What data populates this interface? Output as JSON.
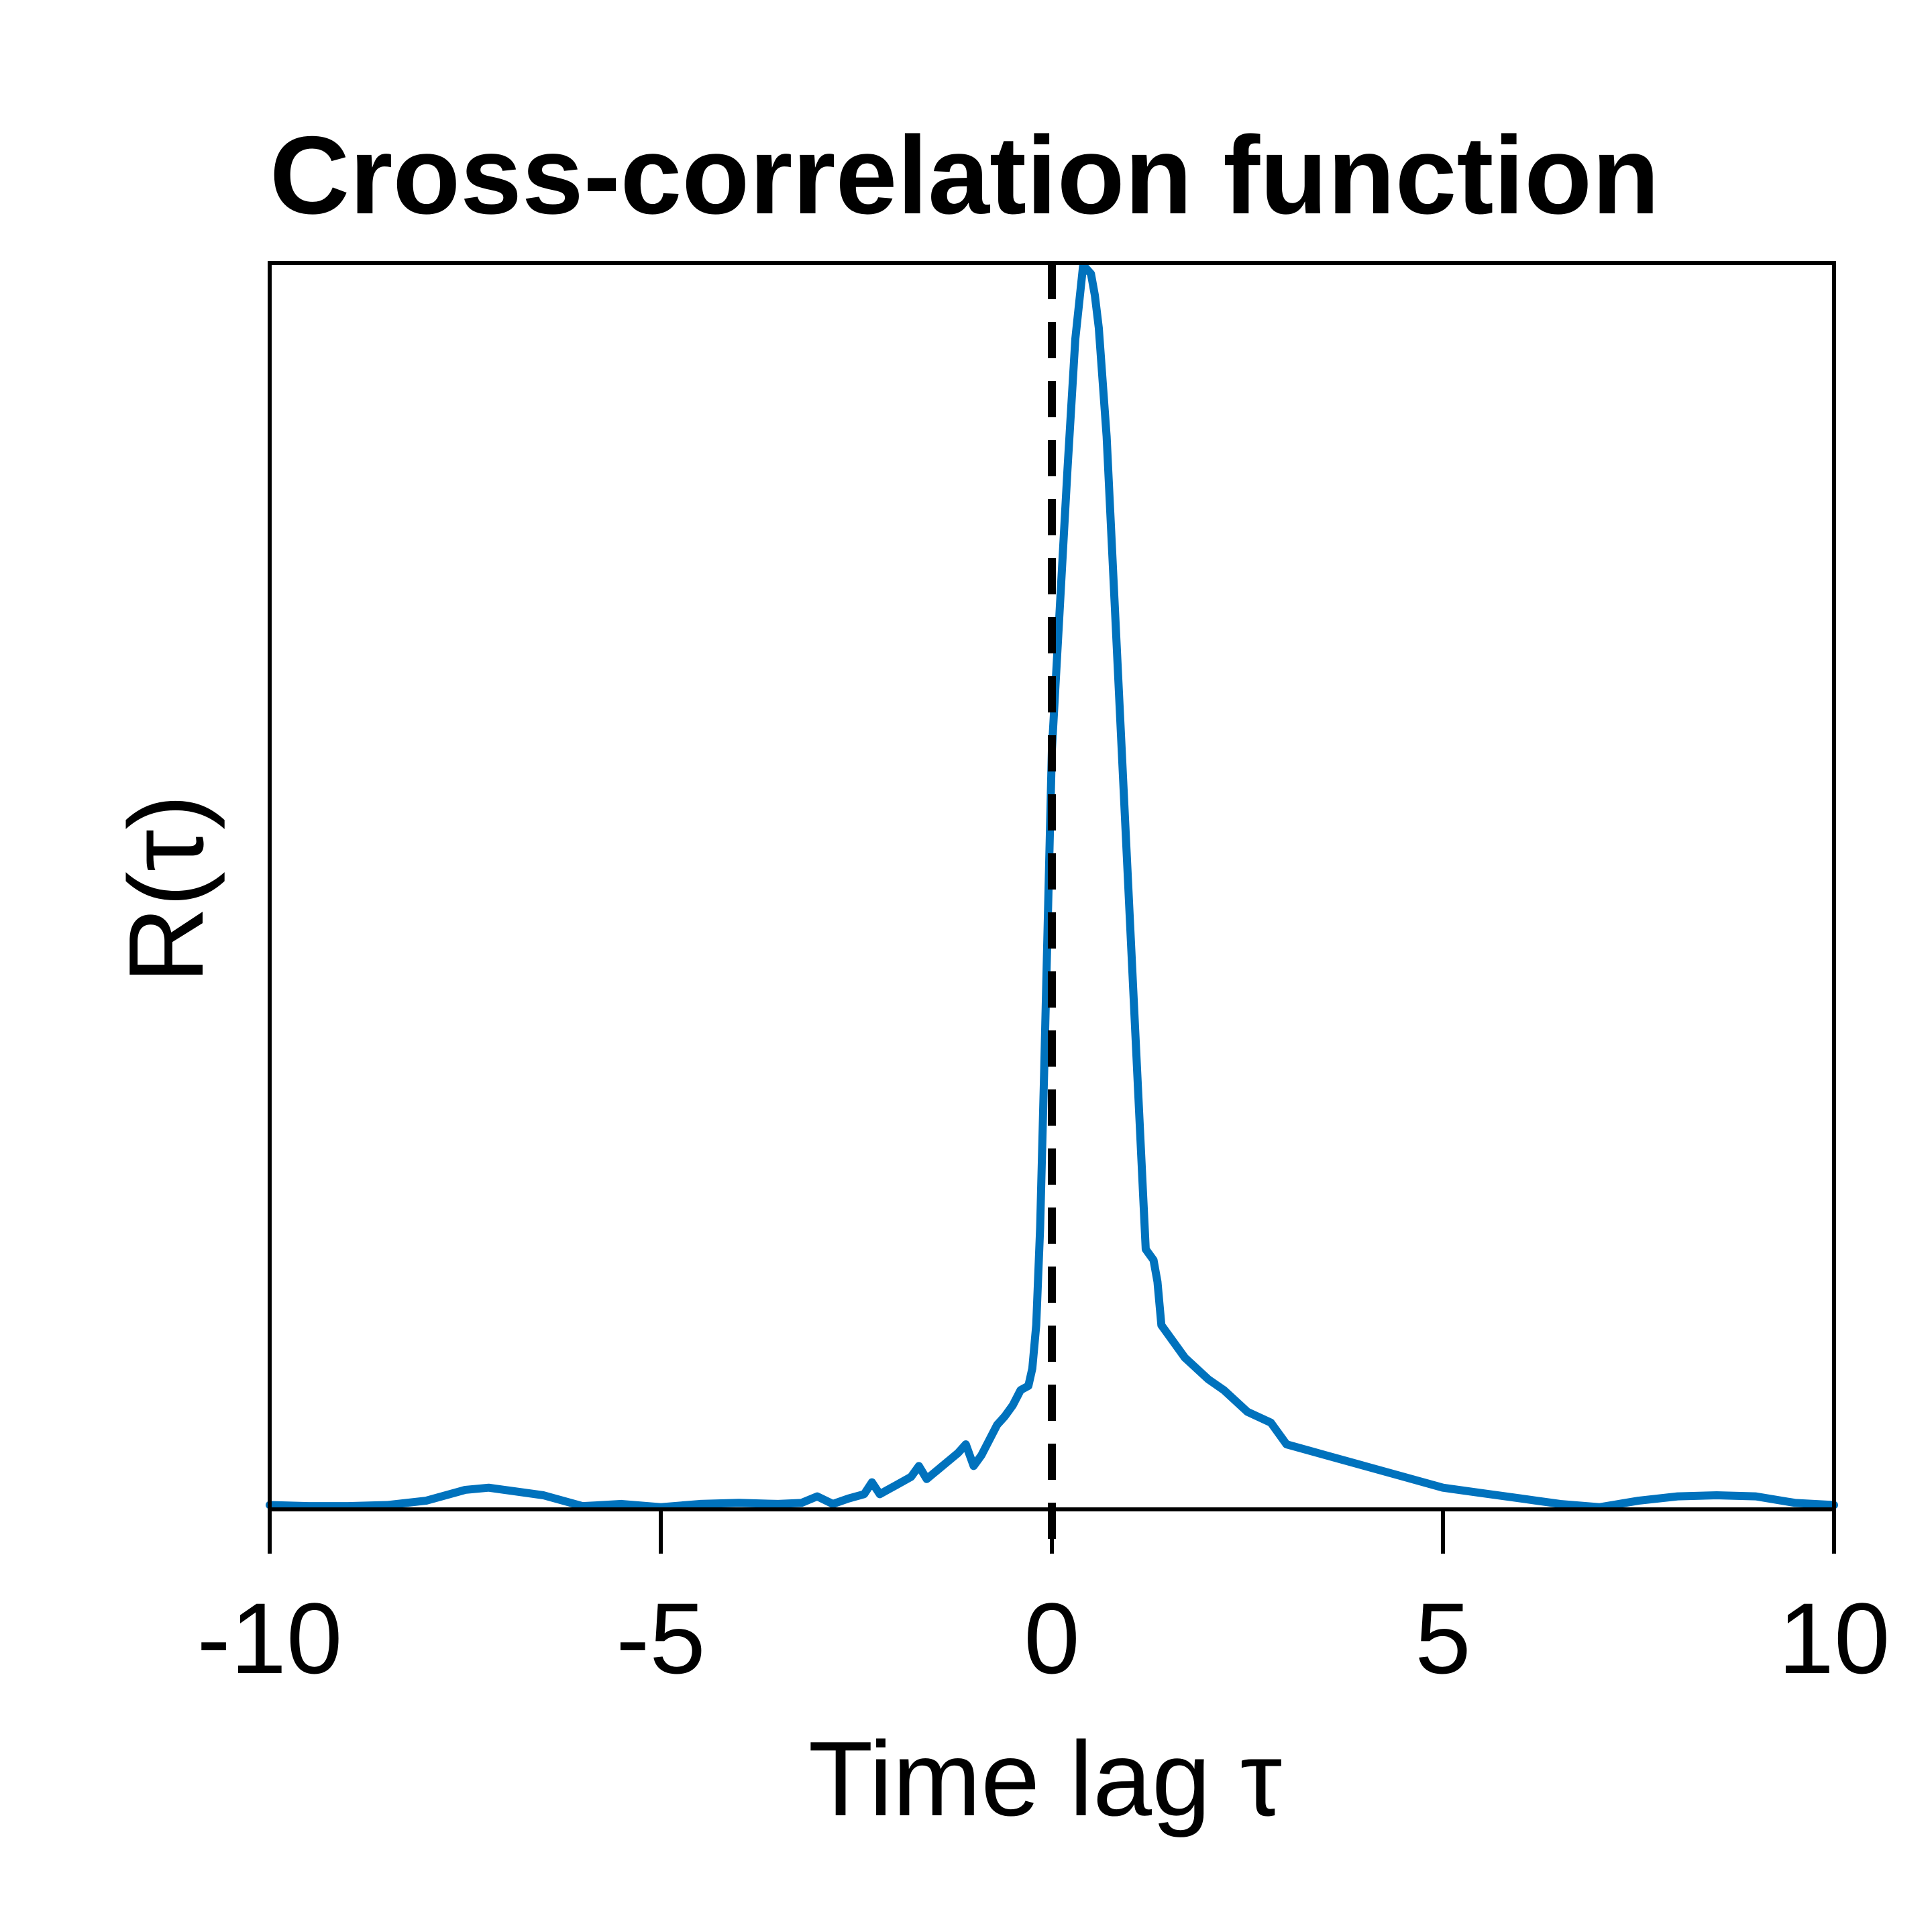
{
  "chart_data": {
    "type": "line",
    "title": "Cross-correlation function",
    "xlabel": "Time lag τ",
    "ylabel": "R(τ)",
    "xlim": [
      -10,
      10
    ],
    "ylim": [
      0,
      1.15
    ],
    "xticks": [
      -10,
      -5,
      0,
      5,
      10
    ],
    "xtick_labels": [
      "-10",
      "-5",
      "0",
      "5",
      "10"
    ],
    "show_yticks": false,
    "grid": false,
    "vline": {
      "x": 0,
      "style": "dashed",
      "color": "#000000"
    },
    "series": [
      {
        "color": "#0072BD",
        "x": [
          -10,
          -9.5,
          -9,
          -8.5,
          -8,
          -7.5,
          -7.2,
          -7,
          -6.5,
          -6,
          -5.5,
          -5,
          -4.5,
          -4,
          -3.5,
          -3.2,
          -3,
          -2.8,
          -2.6,
          -2.4,
          -2.3,
          -2.2,
          -2.1,
          -2.0,
          -1.9,
          -1.8,
          -1.7,
          -1.6,
          -1.5,
          -1.4,
          -1.3,
          -1.2,
          -1.1,
          -1.0,
          -0.9,
          -0.8,
          -0.7,
          -0.6,
          -0.5,
          -0.4,
          -0.3,
          -0.25,
          -0.2,
          -0.15,
          -0.1,
          -0.05,
          0,
          0.1,
          0.2,
          0.3,
          0.4,
          0.5,
          0.55,
          0.6,
          0.65,
          0.7,
          0.8,
          0.9,
          1.0,
          1.1,
          1.2,
          1.3,
          1.35,
          1.4,
          1.5,
          1.7,
          2.0,
          2.2,
          2.5,
          2.8,
          3.0,
          3.5,
          4.0,
          4.5,
          5.0,
          5.5,
          6.0,
          6.5,
          7.0,
          7.5,
          8.0,
          8.5,
          9.0,
          9.5,
          10
        ],
        "y": [
          0.004,
          0.003,
          0.003,
          0.004,
          0.008,
          0.018,
          0.02,
          0.018,
          0.013,
          0.003,
          0.005,
          0.002,
          0.005,
          0.006,
          0.005,
          0.006,
          0.012,
          0.005,
          0.01,
          0.014,
          0.025,
          0.014,
          0.018,
          0.022,
          0.026,
          0.03,
          0.04,
          0.028,
          0.034,
          0.04,
          0.046,
          0.052,
          0.06,
          0.04,
          0.05,
          0.064,
          0.078,
          0.086,
          0.096,
          0.11,
          0.114,
          0.13,
          0.17,
          0.26,
          0.4,
          0.55,
          0.7,
          0.83,
          0.96,
          1.08,
          1.148,
          1.14,
          1.12,
          1.09,
          1.04,
          0.99,
          0.84,
          0.69,
          0.54,
          0.39,
          0.24,
          0.23,
          0.21,
          0.17,
          0.16,
          0.14,
          0.12,
          0.11,
          0.09,
          0.08,
          0.06,
          0.05,
          0.04,
          0.03,
          0.02,
          0.015,
          0.01,
          0.005,
          0.002,
          0.008,
          0.012,
          0.013,
          0.012,
          0.006,
          0.004
        ]
      }
    ]
  }
}
